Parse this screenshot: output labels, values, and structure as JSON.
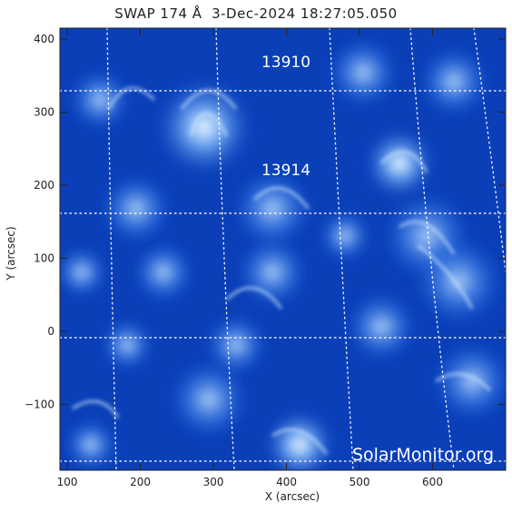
{
  "title": "SWAP 174 Å  3-Dec-2024 18:27:05.050",
  "xlabel": "X (arcsec)",
  "ylabel": "Y (arcsec)",
  "x_ticks": [
    "100",
    "200",
    "300",
    "400",
    "500",
    "600"
  ],
  "y_ticks": [
    "400",
    "300",
    "200",
    "100",
    "0",
    "-100"
  ],
  "regions": [
    {
      "id": "13910",
      "x_arcsec": 365,
      "y_arcsec": 360
    },
    {
      "id": "13914",
      "x_arcsec": 365,
      "y_arcsec": 215
    }
  ],
  "watermark": "SolarMonitor.org",
  "colors": {
    "background": "#ffffff",
    "image_dark": "#001a6e",
    "image_bright": "#e8f4ff"
  }
}
